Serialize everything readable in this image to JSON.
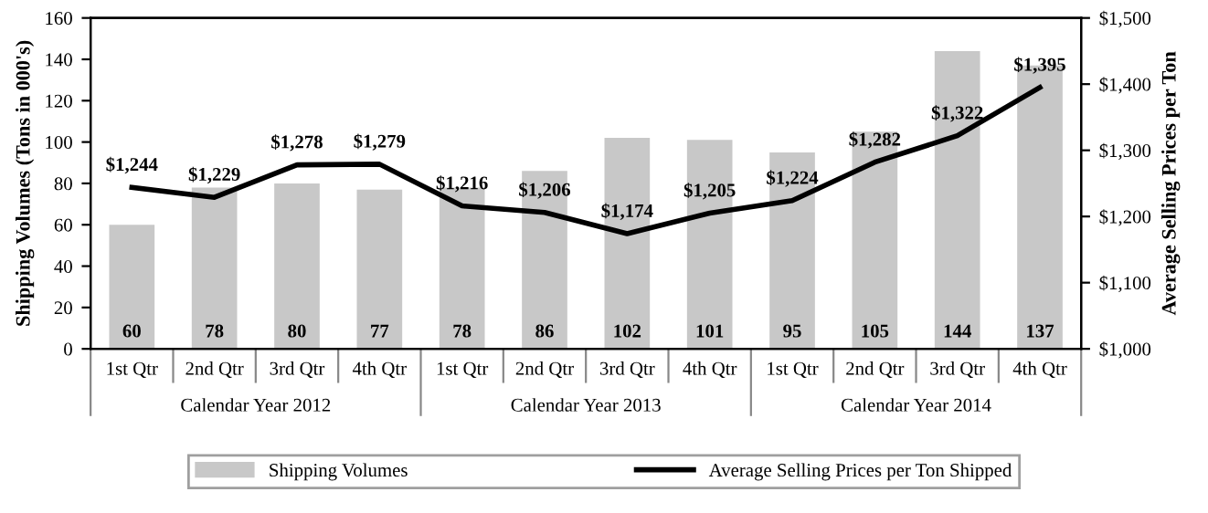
{
  "chart_data": {
    "type": "bar",
    "categories": [
      "1st Qtr",
      "2nd Qtr",
      "3rd Qtr",
      "4th Qtr",
      "1st Qtr",
      "2nd Qtr",
      "3rd Qtr",
      "4th Qtr",
      "1st Qtr",
      "2nd Qtr",
      "3rd Qtr",
      "4th Qtr"
    ],
    "series": [
      {
        "name": "Shipping Volumes",
        "color": "#c8c8c8",
        "values": [
          60,
          78,
          80,
          77,
          78,
          86,
          102,
          101,
          95,
          105,
          144,
          137
        ],
        "value_labels": [
          "60",
          "78",
          "80",
          "77",
          "78",
          "86",
          "102",
          "101",
          "95",
          "105",
          "144",
          "137"
        ]
      },
      {
        "name": "Average Selling Prices per Ton Shipped",
        "type": "line",
        "axis": "y2",
        "color": "#000000",
        "values": [
          1244,
          1229,
          1278,
          1279,
          1216,
          1206,
          1174,
          1205,
          1224,
          1282,
          1322,
          1395
        ],
        "value_labels": [
          "$1,244",
          "$1,229",
          "$1,278",
          "$1,279",
          "$1,216",
          "$1,206",
          "$1,174",
          "$1,205",
          "$1,224",
          "$1,282",
          "$1,322",
          "$1,395"
        ]
      }
    ],
    "ylabel": "Shipping Volumes (Tons in 000's)",
    "y2label": "Average Selling Prices per Ton",
    "ylim": [
      0,
      160
    ],
    "yticks": [
      0,
      20,
      40,
      60,
      80,
      100,
      120,
      140,
      160
    ],
    "y2lim": [
      1000,
      1500
    ],
    "y2ticks": [
      {
        "value": 1000,
        "label": "$1,000"
      },
      {
        "value": 1100,
        "label": "$1,100"
      },
      {
        "value": 1200,
        "label": "$1,200"
      },
      {
        "value": 1300,
        "label": "$1,300"
      },
      {
        "value": 1400,
        "label": "$1,400"
      },
      {
        "value": 1500,
        "label": "$1,500"
      }
    ],
    "annotations": [
      "Calendar Year 2012",
      "Calendar Year 2013",
      "Calendar Year 2014"
    ],
    "grid": false,
    "legend": "bottom",
    "marker": "none",
    "line_style": "solid"
  }
}
